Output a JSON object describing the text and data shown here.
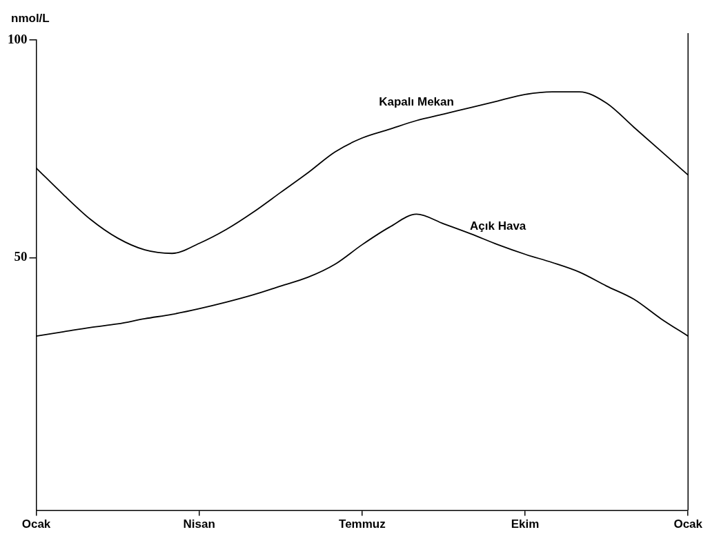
{
  "chart_data": {
    "type": "line",
    "ylabel": "nmol/L",
    "ylim": [
      -8,
      100
    ],
    "yticks": [
      50,
      100
    ],
    "categories": [
      "Ocak",
      null,
      null,
      null,
      null,
      null,
      "Nisan",
      null,
      null,
      null,
      null,
      null,
      "Temmuz",
      null,
      null,
      null,
      null,
      null,
      "Ekim",
      null,
      null,
      null,
      null,
      null,
      "Ocak"
    ],
    "grid": false,
    "legend": false,
    "marker": "none",
    "line_style": "solid",
    "series": [
      {
        "name": "Kapalı Mekan",
        "color": "#000000",
        "values": [
          70.6,
          64.5,
          58.8,
          54.5,
          51.8,
          51,
          53.3,
          56.5,
          60.5,
          65,
          69.5,
          74.3,
          77.5,
          79.5,
          81.5,
          83,
          84.5,
          86,
          87.5,
          88.1,
          88.1,
          85.5,
          80,
          74.5,
          69
        ]
      },
      {
        "name": "Açık Hava",
        "color": "#000000",
        "values": [
          32,
          33,
          34,
          34.8,
          36,
          37,
          38.3,
          39.8,
          41.5,
          43.5,
          45.5,
          48.5,
          53,
          57,
          60,
          57.8,
          55.5,
          53,
          50.8,
          48.9,
          46.7,
          43.5,
          40.5,
          36,
          32
        ]
      }
    ]
  }
}
